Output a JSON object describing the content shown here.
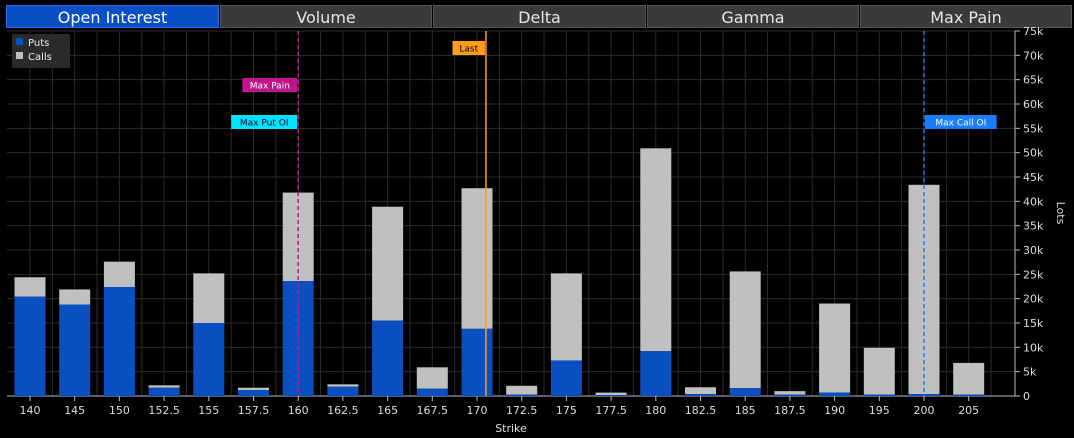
{
  "tabs": [
    {
      "label": "Open Interest",
      "active": true
    },
    {
      "label": "Volume",
      "active": false
    },
    {
      "label": "Delta",
      "active": false
    },
    {
      "label": "Gamma",
      "active": false
    },
    {
      "label": "Max Pain",
      "active": false
    }
  ],
  "colors": {
    "puts": "#0a50c0",
    "calls": "#c0c0c0",
    "last": "#ff9c1a",
    "max_pain": "#c0168c",
    "max_put": "#00e5ff",
    "max_call": "#1a7cff"
  },
  "chart_data": {
    "type": "bar",
    "stacked": true,
    "categories": [
      "140",
      "145",
      "150",
      "152.5",
      "155",
      "157.5",
      "160",
      "162.5",
      "165",
      "167.5",
      "170",
      "172.5",
      "175",
      "177.5",
      "180",
      "182.5",
      "185",
      "187.5",
      "190",
      "195",
      "200",
      "205"
    ],
    "series": [
      {
        "name": "Puts",
        "values": [
          20400,
          18800,
          22400,
          1700,
          15000,
          1200,
          23600,
          1900,
          15500,
          1500,
          13800,
          300,
          7300,
          200,
          9200,
          400,
          1600,
          300,
          700,
          300,
          400,
          300
        ]
      },
      {
        "name": "Calls",
        "values": [
          4000,
          3100,
          5200,
          500,
          10200,
          500,
          18200,
          500,
          23400,
          4400,
          28900,
          1800,
          17900,
          500,
          41700,
          1400,
          24000,
          700,
          18300,
          9600,
          43000,
          6500
        ]
      }
    ],
    "xlabel": "Strike",
    "ylabel": "Lots",
    "ylim": [
      0,
      75000
    ],
    "yticks": [
      "0",
      "5k",
      "10k",
      "15k",
      "20k",
      "25k",
      "30k",
      "35k",
      "40k",
      "45k",
      "50k",
      "55k",
      "60k",
      "65k",
      "70k",
      "75k"
    ],
    "legend": {
      "placement": "top-left"
    },
    "grid": true,
    "markers": [
      {
        "label": "Last",
        "x": 170.5,
        "color_key": "last"
      },
      {
        "label": "Max Pain",
        "x": 160,
        "color_key": "max_pain"
      },
      {
        "label": "Max Put OI",
        "x": 160,
        "color_key": "max_put"
      },
      {
        "label": "Max Call OI",
        "x": 200,
        "color_key": "max_call"
      }
    ]
  }
}
